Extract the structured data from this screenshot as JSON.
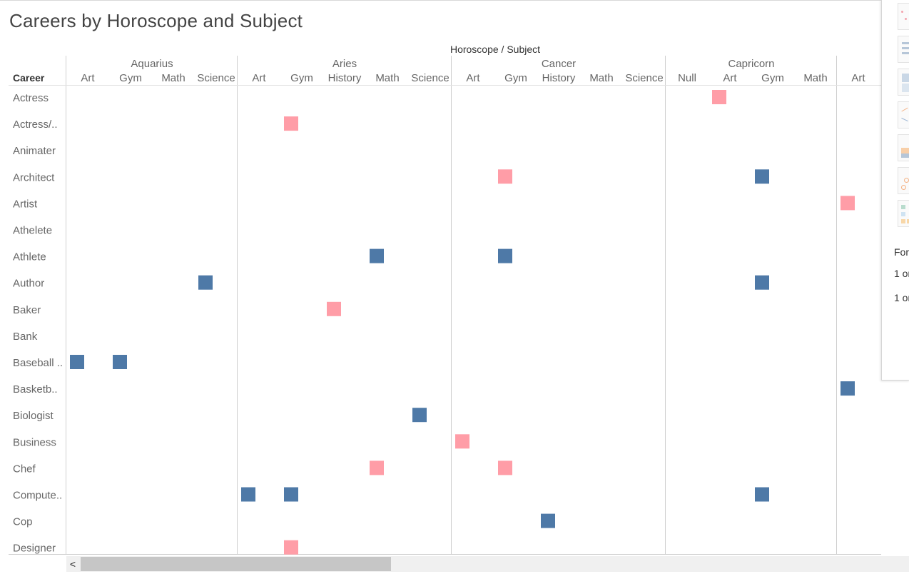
{
  "title": "Careers by Horoscope and Subject",
  "chart_data": {
    "type": "heatmap",
    "header_title": "Horoscope / Subject",
    "row_header": "Career",
    "colors": {
      "pink": "#ff9da7",
      "blue": "#4e79a7"
    },
    "groups": [
      {
        "name": "Aquarius",
        "subjects": [
          "Art",
          "Gym",
          "Math",
          "Science"
        ]
      },
      {
        "name": "Aries",
        "subjects": [
          "Art",
          "Gym",
          "History",
          "Math",
          "Science"
        ]
      },
      {
        "name": "Cancer",
        "subjects": [
          "Art",
          "Gym",
          "History",
          "Math",
          "Science"
        ]
      },
      {
        "name": "Capricorn",
        "subjects": [
          "Null",
          "Art",
          "Gym",
          "Math"
        ]
      },
      {
        "name": "",
        "subjects": [
          "Art"
        ]
      }
    ],
    "rows": [
      "Actress",
      "Actress/..",
      "Animater",
      "Architect",
      "Artist",
      "Athelete",
      "Athlete",
      "Author",
      "Baker",
      "Bank",
      "Baseball ..",
      "Basketb..",
      "Biologist",
      "Business",
      "Chef",
      "Compute..",
      "Cop",
      "Designer"
    ],
    "cells": [
      {
        "row": "Actress",
        "group": "Capricorn",
        "subject": "Art",
        "color": "pink"
      },
      {
        "row": "Actress/..",
        "group": "Aries",
        "subject": "Gym",
        "color": "pink"
      },
      {
        "row": "Architect",
        "group": "Cancer",
        "subject": "Gym",
        "color": "pink"
      },
      {
        "row": "Architect",
        "group": "Capricorn",
        "subject": "Gym",
        "color": "blue"
      },
      {
        "row": "Artist",
        "group": "",
        "subject": "Art",
        "color": "pink"
      },
      {
        "row": "Athlete",
        "group": "Aries",
        "subject": "Math",
        "color": "blue"
      },
      {
        "row": "Athlete",
        "group": "Cancer",
        "subject": "Gym",
        "color": "blue"
      },
      {
        "row": "Author",
        "group": "Aquarius",
        "subject": "Science",
        "color": "blue"
      },
      {
        "row": "Author",
        "group": "Capricorn",
        "subject": "Gym",
        "color": "blue"
      },
      {
        "row": "Baker",
        "group": "Aries",
        "subject": "History",
        "color": "pink"
      },
      {
        "row": "Baseball ..",
        "group": "Aquarius",
        "subject": "Art",
        "color": "blue"
      },
      {
        "row": "Baseball ..",
        "group": "Aquarius",
        "subject": "Gym",
        "color": "blue"
      },
      {
        "row": "Basketb..",
        "group": "",
        "subject": "Art",
        "color": "blue"
      },
      {
        "row": "Biologist",
        "group": "Aries",
        "subject": "Science",
        "color": "blue"
      },
      {
        "row": "Business",
        "group": "Cancer",
        "subject": "Art",
        "color": "pink"
      },
      {
        "row": "Chef",
        "group": "Aries",
        "subject": "Math",
        "color": "pink"
      },
      {
        "row": "Chef",
        "group": "Cancer",
        "subject": "Gym",
        "color": "pink"
      },
      {
        "row": "Compute..",
        "group": "Aries",
        "subject": "Art",
        "color": "blue"
      },
      {
        "row": "Compute..",
        "group": "Aries",
        "subject": "Gym",
        "color": "blue"
      },
      {
        "row": "Compute..",
        "group": "Capricorn",
        "subject": "Gym",
        "color": "blue"
      },
      {
        "row": "Cop",
        "group": "Cancer",
        "subject": "History",
        "color": "blue"
      },
      {
        "row": "Designer",
        "group": "Aries",
        "subject": "Gym",
        "color": "pink"
      }
    ]
  },
  "side_panel": {
    "texts": [
      "For",
      "1 or",
      "1 or"
    ]
  },
  "scrollbar": {
    "left_arrow": "<"
  }
}
